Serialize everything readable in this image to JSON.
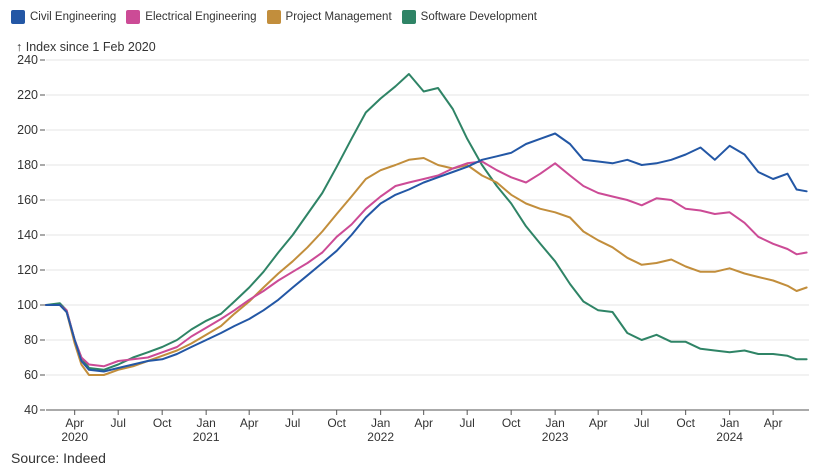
{
  "legend": [
    {
      "label": "Civil Engineering",
      "color": "#2357a5"
    },
    {
      "label": "Electrical Engineering",
      "color": "#cc4b96"
    },
    {
      "label": "Project Management",
      "color": "#c28e3c"
    },
    {
      "label": "Software Development",
      "color": "#2f8466"
    }
  ],
  "source": "Source: Indeed",
  "chart_data": {
    "type": "line",
    "ylabel": "↑ Index since 1 Feb 2020",
    "ylim": [
      40,
      240
    ],
    "yticks": [
      40,
      60,
      80,
      100,
      120,
      140,
      160,
      180,
      200,
      220,
      240
    ],
    "xlim": [
      "2020-02-01",
      "2024-06-15"
    ],
    "xticks": [
      {
        "date": "2020-04-01",
        "label": "Apr",
        "year": "2020"
      },
      {
        "date": "2020-07-01",
        "label": "Jul",
        "year": ""
      },
      {
        "date": "2020-10-01",
        "label": "Oct",
        "year": ""
      },
      {
        "date": "2021-01-01",
        "label": "Jan",
        "year": "2021"
      },
      {
        "date": "2021-04-01",
        "label": "Apr",
        "year": ""
      },
      {
        "date": "2021-07-01",
        "label": "Jul",
        "year": ""
      },
      {
        "date": "2021-10-01",
        "label": "Oct",
        "year": ""
      },
      {
        "date": "2022-01-01",
        "label": "Jan",
        "year": "2022"
      },
      {
        "date": "2022-04-01",
        "label": "Apr",
        "year": ""
      },
      {
        "date": "2022-07-01",
        "label": "Jul",
        "year": ""
      },
      {
        "date": "2022-10-01",
        "label": "Oct",
        "year": ""
      },
      {
        "date": "2023-01-01",
        "label": "Jan",
        "year": "2023"
      },
      {
        "date": "2023-04-01",
        "label": "Apr",
        "year": ""
      },
      {
        "date": "2023-07-01",
        "label": "Jul",
        "year": ""
      },
      {
        "date": "2023-10-01",
        "label": "Oct",
        "year": ""
      },
      {
        "date": "2024-01-01",
        "label": "Jan",
        "year": "2024"
      },
      {
        "date": "2024-04-01",
        "label": "Apr",
        "year": ""
      }
    ],
    "grid": true,
    "series": [
      {
        "name": "Software Development",
        "color": "#2f8466",
        "points": [
          [
            "2020-02-01",
            100
          ],
          [
            "2020-03-01",
            101
          ],
          [
            "2020-03-15",
            97
          ],
          [
            "2020-04-01",
            80
          ],
          [
            "2020-04-15",
            70
          ],
          [
            "2020-05-01",
            64
          ],
          [
            "2020-06-01",
            63
          ],
          [
            "2020-07-01",
            66
          ],
          [
            "2020-08-01",
            70
          ],
          [
            "2020-09-01",
            73
          ],
          [
            "2020-10-01",
            76
          ],
          [
            "2020-11-01",
            80
          ],
          [
            "2020-12-01",
            86
          ],
          [
            "2021-01-01",
            91
          ],
          [
            "2021-02-01",
            95
          ],
          [
            "2021-03-01",
            102
          ],
          [
            "2021-04-01",
            110
          ],
          [
            "2021-05-01",
            119
          ],
          [
            "2021-06-01",
            130
          ],
          [
            "2021-07-01",
            140
          ],
          [
            "2021-08-01",
            152
          ],
          [
            "2021-09-01",
            164
          ],
          [
            "2021-10-01",
            179
          ],
          [
            "2021-11-01",
            195
          ],
          [
            "2021-12-01",
            210
          ],
          [
            "2022-01-01",
            218
          ],
          [
            "2022-02-01",
            225
          ],
          [
            "2022-03-01",
            232
          ],
          [
            "2022-04-01",
            222
          ],
          [
            "2022-05-01",
            224
          ],
          [
            "2022-06-01",
            212
          ],
          [
            "2022-07-01",
            195
          ],
          [
            "2022-08-01",
            180
          ],
          [
            "2022-09-01",
            168
          ],
          [
            "2022-10-01",
            158
          ],
          [
            "2022-11-01",
            145
          ],
          [
            "2022-12-01",
            135
          ],
          [
            "2023-01-01",
            125
          ],
          [
            "2023-02-01",
            112
          ],
          [
            "2023-03-01",
            102
          ],
          [
            "2023-04-01",
            97
          ],
          [
            "2023-05-01",
            96
          ],
          [
            "2023-06-01",
            84
          ],
          [
            "2023-07-01",
            80
          ],
          [
            "2023-08-01",
            83
          ],
          [
            "2023-09-01",
            79
          ],
          [
            "2023-10-01",
            79
          ],
          [
            "2023-11-01",
            75
          ],
          [
            "2023-12-01",
            74
          ],
          [
            "2024-01-01",
            73
          ],
          [
            "2024-02-01",
            74
          ],
          [
            "2024-03-01",
            72
          ],
          [
            "2024-04-01",
            72
          ],
          [
            "2024-05-01",
            71
          ],
          [
            "2024-05-20",
            69
          ],
          [
            "2024-06-10",
            69
          ]
        ]
      },
      {
        "name": "Project Management",
        "color": "#c28e3c",
        "points": [
          [
            "2020-02-01",
            100
          ],
          [
            "2020-03-01",
            100
          ],
          [
            "2020-03-15",
            96
          ],
          [
            "2020-04-01",
            78
          ],
          [
            "2020-04-15",
            66
          ],
          [
            "2020-05-01",
            60
          ],
          [
            "2020-06-01",
            60
          ],
          [
            "2020-07-01",
            63
          ],
          [
            "2020-08-01",
            65
          ],
          [
            "2020-09-01",
            68
          ],
          [
            "2020-10-01",
            71
          ],
          [
            "2020-11-01",
            74
          ],
          [
            "2020-12-01",
            78
          ],
          [
            "2021-01-01",
            83
          ],
          [
            "2021-02-01",
            88
          ],
          [
            "2021-03-01",
            95
          ],
          [
            "2021-04-01",
            102
          ],
          [
            "2021-05-01",
            110
          ],
          [
            "2021-06-01",
            118
          ],
          [
            "2021-07-01",
            125
          ],
          [
            "2021-08-01",
            133
          ],
          [
            "2021-09-01",
            142
          ],
          [
            "2021-10-01",
            152
          ],
          [
            "2021-11-01",
            162
          ],
          [
            "2021-12-01",
            172
          ],
          [
            "2022-01-01",
            177
          ],
          [
            "2022-02-01",
            180
          ],
          [
            "2022-03-01",
            183
          ],
          [
            "2022-04-01",
            184
          ],
          [
            "2022-05-01",
            180
          ],
          [
            "2022-06-01",
            178
          ],
          [
            "2022-07-01",
            180
          ],
          [
            "2022-08-01",
            174
          ],
          [
            "2022-09-01",
            170
          ],
          [
            "2022-10-01",
            163
          ],
          [
            "2022-11-01",
            158
          ],
          [
            "2022-12-01",
            155
          ],
          [
            "2023-01-01",
            153
          ],
          [
            "2023-02-01",
            150
          ],
          [
            "2023-03-01",
            142
          ],
          [
            "2023-04-01",
            137
          ],
          [
            "2023-05-01",
            133
          ],
          [
            "2023-06-01",
            127
          ],
          [
            "2023-07-01",
            123
          ],
          [
            "2023-08-01",
            124
          ],
          [
            "2023-09-01",
            126
          ],
          [
            "2023-10-01",
            122
          ],
          [
            "2023-11-01",
            119
          ],
          [
            "2023-12-01",
            119
          ],
          [
            "2024-01-01",
            121
          ],
          [
            "2024-02-01",
            118
          ],
          [
            "2024-03-01",
            116
          ],
          [
            "2024-04-01",
            114
          ],
          [
            "2024-05-01",
            111
          ],
          [
            "2024-05-20",
            108
          ],
          [
            "2024-06-10",
            110
          ]
        ]
      },
      {
        "name": "Electrical Engineering",
        "color": "#cc4b96",
        "points": [
          [
            "2020-02-01",
            100
          ],
          [
            "2020-03-01",
            100
          ],
          [
            "2020-03-15",
            97
          ],
          [
            "2020-04-01",
            80
          ],
          [
            "2020-04-15",
            70
          ],
          [
            "2020-05-01",
            66
          ],
          [
            "2020-06-01",
            65
          ],
          [
            "2020-07-01",
            68
          ],
          [
            "2020-08-01",
            69
          ],
          [
            "2020-09-01",
            70
          ],
          [
            "2020-10-01",
            73
          ],
          [
            "2020-11-01",
            76
          ],
          [
            "2020-12-01",
            82
          ],
          [
            "2021-01-01",
            87
          ],
          [
            "2021-02-01",
            92
          ],
          [
            "2021-03-01",
            97
          ],
          [
            "2021-04-01",
            103
          ],
          [
            "2021-05-01",
            108
          ],
          [
            "2021-06-01",
            114
          ],
          [
            "2021-07-01",
            119
          ],
          [
            "2021-08-01",
            124
          ],
          [
            "2021-09-01",
            130
          ],
          [
            "2021-10-01",
            139
          ],
          [
            "2021-11-01",
            146
          ],
          [
            "2021-12-01",
            155
          ],
          [
            "2022-01-01",
            162
          ],
          [
            "2022-02-01",
            168
          ],
          [
            "2022-03-01",
            170
          ],
          [
            "2022-04-01",
            172
          ],
          [
            "2022-05-01",
            174
          ],
          [
            "2022-06-01",
            178
          ],
          [
            "2022-07-01",
            181
          ],
          [
            "2022-08-01",
            182
          ],
          [
            "2022-09-01",
            177
          ],
          [
            "2022-10-01",
            173
          ],
          [
            "2022-11-01",
            170
          ],
          [
            "2022-12-01",
            175
          ],
          [
            "2023-01-01",
            181
          ],
          [
            "2023-02-01",
            174
          ],
          [
            "2023-03-01",
            168
          ],
          [
            "2023-04-01",
            164
          ],
          [
            "2023-05-01",
            162
          ],
          [
            "2023-06-01",
            160
          ],
          [
            "2023-07-01",
            157
          ],
          [
            "2023-08-01",
            161
          ],
          [
            "2023-09-01",
            160
          ],
          [
            "2023-10-01",
            155
          ],
          [
            "2023-11-01",
            154
          ],
          [
            "2023-12-01",
            152
          ],
          [
            "2024-01-01",
            153
          ],
          [
            "2024-02-01",
            147
          ],
          [
            "2024-03-01",
            139
          ],
          [
            "2024-04-01",
            135
          ],
          [
            "2024-05-01",
            132
          ],
          [
            "2024-05-20",
            129
          ],
          [
            "2024-06-10",
            130
          ]
        ]
      },
      {
        "name": "Civil Engineering",
        "color": "#2357a5",
        "points": [
          [
            "2020-02-01",
            100
          ],
          [
            "2020-03-01",
            100
          ],
          [
            "2020-03-15",
            96
          ],
          [
            "2020-04-01",
            80
          ],
          [
            "2020-04-15",
            68
          ],
          [
            "2020-05-01",
            63
          ],
          [
            "2020-06-01",
            62
          ],
          [
            "2020-07-01",
            64
          ],
          [
            "2020-08-01",
            66
          ],
          [
            "2020-09-01",
            68
          ],
          [
            "2020-10-01",
            69
          ],
          [
            "2020-11-01",
            72
          ],
          [
            "2020-12-01",
            76
          ],
          [
            "2021-01-01",
            80
          ],
          [
            "2021-02-01",
            84
          ],
          [
            "2021-03-01",
            88
          ],
          [
            "2021-04-01",
            92
          ],
          [
            "2021-05-01",
            97
          ],
          [
            "2021-06-01",
            103
          ],
          [
            "2021-07-01",
            110
          ],
          [
            "2021-08-01",
            117
          ],
          [
            "2021-09-01",
            124
          ],
          [
            "2021-10-01",
            131
          ],
          [
            "2021-11-01",
            140
          ],
          [
            "2021-12-01",
            150
          ],
          [
            "2022-01-01",
            158
          ],
          [
            "2022-02-01",
            163
          ],
          [
            "2022-03-01",
            166
          ],
          [
            "2022-04-01",
            170
          ],
          [
            "2022-05-01",
            173
          ],
          [
            "2022-06-01",
            176
          ],
          [
            "2022-07-01",
            179
          ],
          [
            "2022-08-01",
            183
          ],
          [
            "2022-09-01",
            185
          ],
          [
            "2022-10-01",
            187
          ],
          [
            "2022-11-01",
            192
          ],
          [
            "2022-12-01",
            195
          ],
          [
            "2023-01-01",
            198
          ],
          [
            "2023-02-01",
            192
          ],
          [
            "2023-03-01",
            183
          ],
          [
            "2023-04-01",
            182
          ],
          [
            "2023-05-01",
            181
          ],
          [
            "2023-06-01",
            183
          ],
          [
            "2023-07-01",
            180
          ],
          [
            "2023-08-01",
            181
          ],
          [
            "2023-09-01",
            183
          ],
          [
            "2023-10-01",
            186
          ],
          [
            "2023-11-01",
            190
          ],
          [
            "2023-12-01",
            183
          ],
          [
            "2024-01-01",
            191
          ],
          [
            "2024-02-01",
            186
          ],
          [
            "2024-03-01",
            176
          ],
          [
            "2024-04-01",
            172
          ],
          [
            "2024-05-01",
            175
          ],
          [
            "2024-05-20",
            166
          ],
          [
            "2024-06-10",
            165
          ]
        ]
      }
    ]
  }
}
